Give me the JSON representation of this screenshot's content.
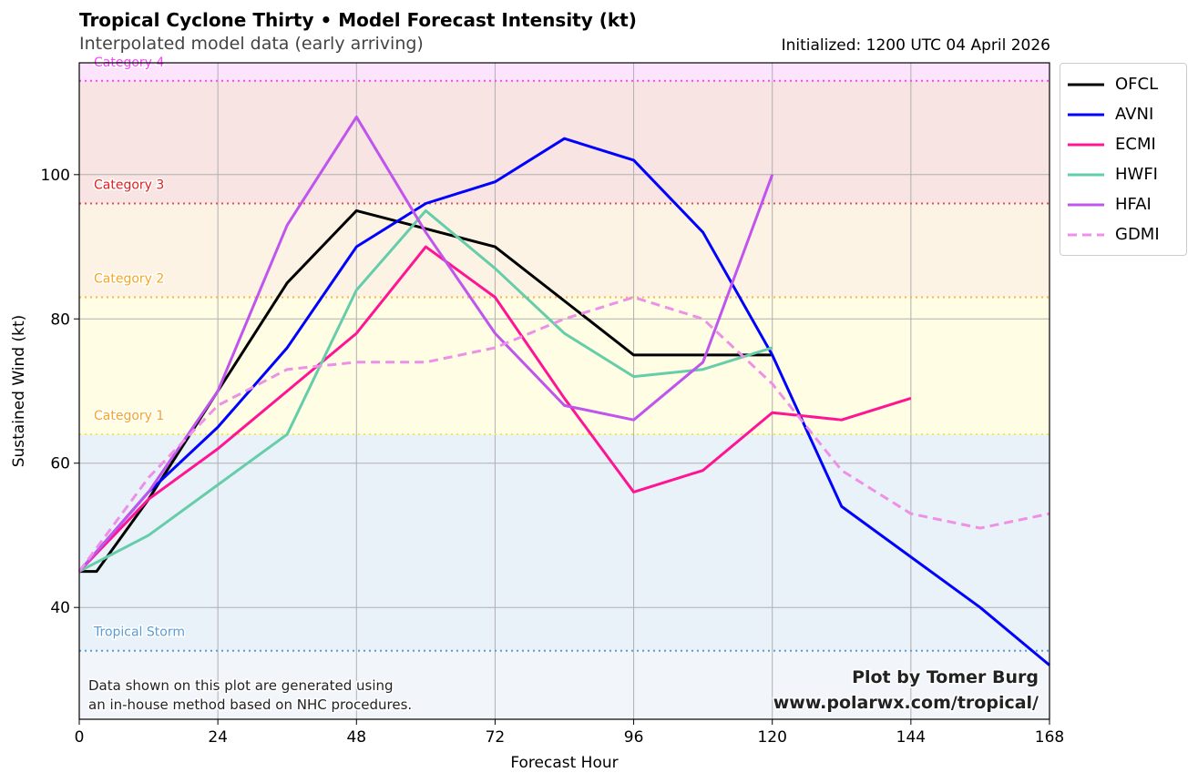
{
  "title": "Tropical Cyclone Thirty • Model Forecast Intensity (kt)",
  "subtitle": "Interpolated model data (early arriving)",
  "initialized": "Initialized: 1200 UTC 04 April 2026",
  "disclaimer": [
    "Data shown on this plot are generated using",
    "an in-house method based on NHC procedures."
  ],
  "credit": [
    "Plot by Tomer Burg",
    "www.polarwx.com/tropical/"
  ],
  "chart_data": {
    "type": "line",
    "xlabel": "Forecast Hour",
    "ylabel": "Sustained Wind (kt)",
    "xlim": [
      0,
      168
    ],
    "ylim": [
      24.5,
      115.5
    ],
    "xticks": [
      0,
      24,
      48,
      72,
      96,
      120,
      144,
      168
    ],
    "yticks": [
      40,
      60,
      80,
      100
    ],
    "grid": true,
    "legend": "outside-right",
    "thresholds": [
      {
        "name": "Tropical Storm",
        "value": 34,
        "color": "#5b9bd5",
        "fill": "#e9f1f9"
      },
      {
        "name": "Category 1",
        "value": 64,
        "color": "#f5e64a",
        "label_color": "#f5a623",
        "fill": "#fffde4"
      },
      {
        "name": "Category 2",
        "value": 83,
        "color": "#f7b542",
        "label_color": "#f5a623",
        "fill": "#fdf3e4"
      },
      {
        "name": "Category 3",
        "value": 96,
        "color": "#e05050",
        "label_color": "#e02020",
        "fill": "#f9e4e4"
      },
      {
        "name": "Category 4",
        "value": 113,
        "color": "#ff40ff",
        "label_color": "#ff40ff",
        "fill": "#fde4fd"
      }
    ],
    "below_ts_fill": "#f2f6fb",
    "series": [
      {
        "name": "OFCL",
        "color": "#000000",
        "dash": false,
        "x": [
          0,
          3,
          12,
          24,
          36,
          48,
          60,
          72,
          96,
          120
        ],
        "y": [
          45,
          45,
          55,
          70,
          85,
          95,
          92.5,
          90,
          75,
          75
        ]
      },
      {
        "name": "AVNI",
        "color": "#0000ff",
        "dash": false,
        "x": [
          0,
          12,
          24,
          36,
          48,
          60,
          72,
          84,
          96,
          108,
          120,
          132,
          144,
          156,
          168
        ],
        "y": [
          45,
          56,
          65,
          76,
          90,
          96,
          99,
          105,
          102,
          92,
          75,
          54,
          47,
          40,
          32
        ]
      },
      {
        "name": "ECMI",
        "color": "#ff1493",
        "dash": false,
        "x": [
          0,
          12,
          24,
          36,
          48,
          60,
          72,
          84,
          96,
          108,
          120,
          132,
          144
        ],
        "y": [
          45,
          55,
          62,
          70,
          78,
          90,
          83,
          69,
          56,
          59,
          67,
          66,
          69
        ]
      },
      {
        "name": "HWFI",
        "color": "#66cdaa",
        "dash": false,
        "x": [
          0,
          12,
          24,
          36,
          48,
          60,
          72,
          84,
          96,
          108,
          120
        ],
        "y": [
          45,
          50,
          57,
          64,
          84,
          95,
          87,
          78,
          72,
          73,
          76
        ]
      },
      {
        "name": "HFAI",
        "color": "#bf55ec",
        "dash": false,
        "x": [
          0,
          12,
          24,
          36,
          48,
          60,
          72,
          84,
          96,
          108,
          120
        ],
        "y": [
          45,
          56,
          70,
          93,
          108,
          92,
          78,
          68,
          66,
          74,
          100
        ]
      },
      {
        "name": "GDMI",
        "color": "#ee90e6",
        "dash": true,
        "x": [
          0,
          12,
          24,
          36,
          48,
          60,
          72,
          84,
          96,
          108,
          120,
          132,
          144,
          156,
          168
        ],
        "y": [
          45,
          58,
          68,
          73,
          74,
          74,
          76,
          80,
          83,
          80,
          71,
          59,
          53,
          51,
          53
        ]
      }
    ]
  }
}
